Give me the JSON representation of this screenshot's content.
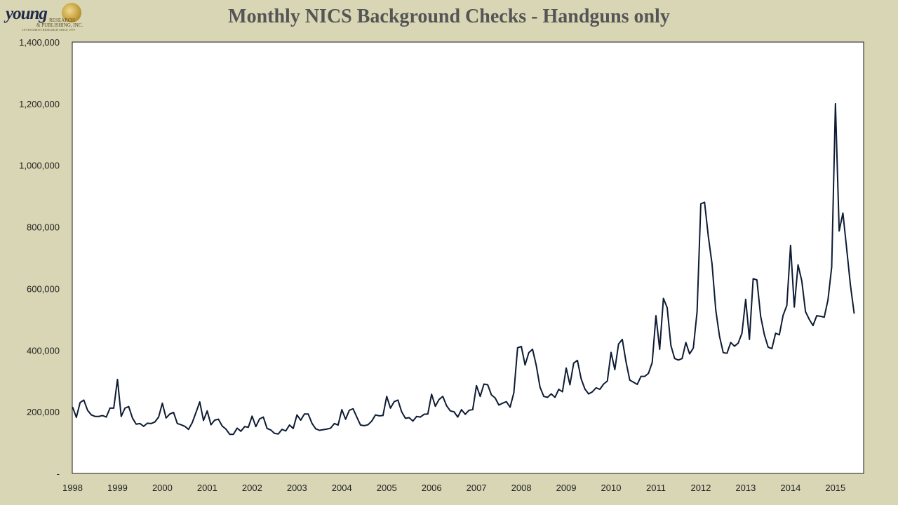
{
  "logo": {
    "name": "young",
    "line1": "RESEARCH",
    "line2": "& PUBLISHING, INC.",
    "line3": "INVESTMENT RESEARCH SINCE 1979"
  },
  "colors": {
    "background": "#d8d6b4",
    "plot_area": "#ffffff",
    "line": "#0d1b33",
    "title": "#555555"
  },
  "chart_data": {
    "type": "line",
    "title": "Monthly NICS Background Checks - Handguns only",
    "xlabel": "",
    "ylabel": "",
    "ylim": [
      0,
      1400000
    ],
    "yticks": [
      0,
      200000,
      400000,
      600000,
      800000,
      1000000,
      1200000,
      1400000
    ],
    "ytick_labels": [
      "-",
      "200,000",
      "400,000",
      "600,000",
      "800,000",
      "1,000,000",
      "1,200,000",
      "1,400,000"
    ],
    "xticks": [
      "1998",
      "1999",
      "2000",
      "2001",
      "2002",
      "2003",
      "2004",
      "2005",
      "2006",
      "2007",
      "2008",
      "2009",
      "2010",
      "2011",
      "2012",
      "2013",
      "2014",
      "2015"
    ],
    "x_start": "1998-01",
    "x_frequency": "monthly",
    "grid": false,
    "legend": "none",
    "series": [
      {
        "values": [
          215000,
          182000,
          230000,
          238000,
          205000,
          190000,
          185000,
          185000,
          188000,
          183000,
          212000,
          212000,
          305000,
          185000,
          212000,
          217000,
          180000,
          160000,
          162000,
          153000,
          163000,
          162000,
          167000,
          183000,
          228000,
          180000,
          193000,
          198000,
          162000,
          158000,
          153000,
          143000,
          165000,
          198000,
          232000,
          172000,
          203000,
          158000,
          173000,
          176000,
          154000,
          144000,
          127000,
          127000,
          147000,
          137000,
          152000,
          150000,
          186000,
          152000,
          177000,
          183000,
          146000,
          141000,
          130000,
          128000,
          143000,
          138000,
          157000,
          146000,
          190000,
          173000,
          193000,
          193000,
          163000,
          145000,
          140000,
          142000,
          144000,
          147000,
          162000,
          157000,
          207000,
          176000,
          205000,
          210000,
          183000,
          157000,
          155000,
          158000,
          170000,
          190000,
          187000,
          188000,
          250000,
          212000,
          233000,
          238000,
          200000,
          179000,
          181000,
          170000,
          185000,
          183000,
          192000,
          193000,
          257000,
          218000,
          240000,
          250000,
          220000,
          203000,
          200000,
          183000,
          207000,
          192000,
          205000,
          207000,
          285000,
          250000,
          290000,
          288000,
          255000,
          245000,
          222000,
          228000,
          233000,
          215000,
          262000,
          408000,
          412000,
          352000,
          392000,
          403000,
          350000,
          280000,
          250000,
          247000,
          258000,
          247000,
          273000,
          265000,
          342000,
          288000,
          358000,
          367000,
          307000,
          274000,
          258000,
          265000,
          278000,
          273000,
          290000,
          300000,
          393000,
          337000,
          420000,
          435000,
          362000,
          303000,
          296000,
          289000,
          315000,
          315000,
          325000,
          360000,
          512000,
          403000,
          568000,
          538000,
          415000,
          373000,
          368000,
          373000,
          425000,
          388000,
          407000,
          525000,
          875000,
          880000,
          770000,
          680000,
          530000,
          445000,
          392000,
          390000,
          425000,
          413000,
          423000,
          455000,
          565000,
          435000,
          632000,
          628000,
          510000,
          450000,
          410000,
          405000,
          455000,
          450000,
          513000,
          545000,
          740000,
          540000,
          677000,
          625000,
          525000,
          500000,
          480000,
          512000,
          510000,
          507000,
          563000,
          670000,
          1200000,
          787000,
          845000,
          730000,
          612000,
          520000
        ]
      }
    ]
  }
}
